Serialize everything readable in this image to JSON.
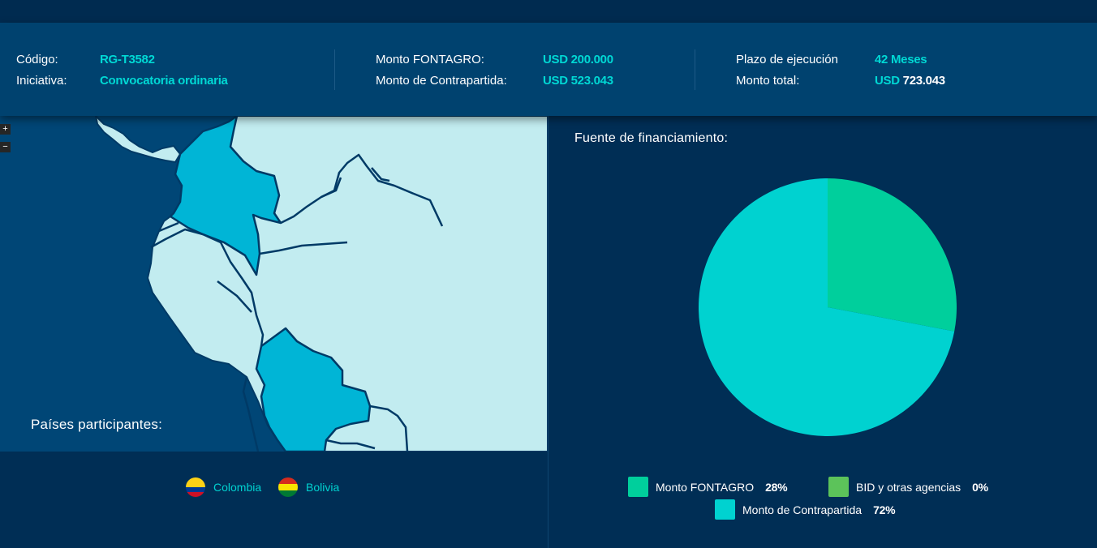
{
  "info": {
    "codigo_label": "Código:",
    "codigo_value": "RG-T3582",
    "iniciativa_label": "Iniciativa:",
    "iniciativa_value": "Convocatoria ordinaria",
    "monto_fontagro_label": "Monto FONTAGRO:",
    "monto_fontagro_value": "USD 200.000",
    "monto_contrapartida_label": "Monto de Contrapartida:",
    "monto_contrapartida_value": "USD 523.043",
    "plazo_label": "Plazo de ejecución",
    "plazo_value": "42 Meses",
    "monto_total_label": "Monto total:",
    "monto_total_currency": "USD",
    "monto_total_amount": "723.043"
  },
  "map": {
    "zoom_in": "+",
    "zoom_out": "−",
    "paises_title": "Países participantes:",
    "countries": [
      {
        "name": "Colombia",
        "flag_colors": [
          "#fcd116",
          "#003893",
          "#ce1126"
        ]
      },
      {
        "name": "Bolivia",
        "flag_colors": [
          "#d52b1e",
          "#f9e300",
          "#007934"
        ]
      }
    ],
    "colors": {
      "highlight": "#00b5d6",
      "land": "#c2ecf0",
      "border": "#003a66",
      "ocean": "#004676"
    }
  },
  "financing": {
    "title": "Fuente de financiamiento:",
    "legend": [
      {
        "label": "Monto FONTAGRO",
        "pct": "28%",
        "color": "#00cf9c"
      },
      {
        "label": "BID y otras agencias",
        "pct": "0%",
        "color": "#5cc35a"
      },
      {
        "label": "Monto de Contrapartida",
        "pct": "72%",
        "color": "#00d2d0"
      }
    ]
  },
  "chart_data": {
    "type": "pie",
    "title": "Fuente de financiamiento:",
    "categories": [
      "Monto FONTAGRO",
      "BID y otras agencias",
      "Monto de Contrapartida"
    ],
    "values": [
      28,
      0,
      72
    ],
    "unit": "%",
    "colors": [
      "#00cf9c",
      "#5cc35a",
      "#00d2d0"
    ],
    "legend_position": "bottom"
  }
}
